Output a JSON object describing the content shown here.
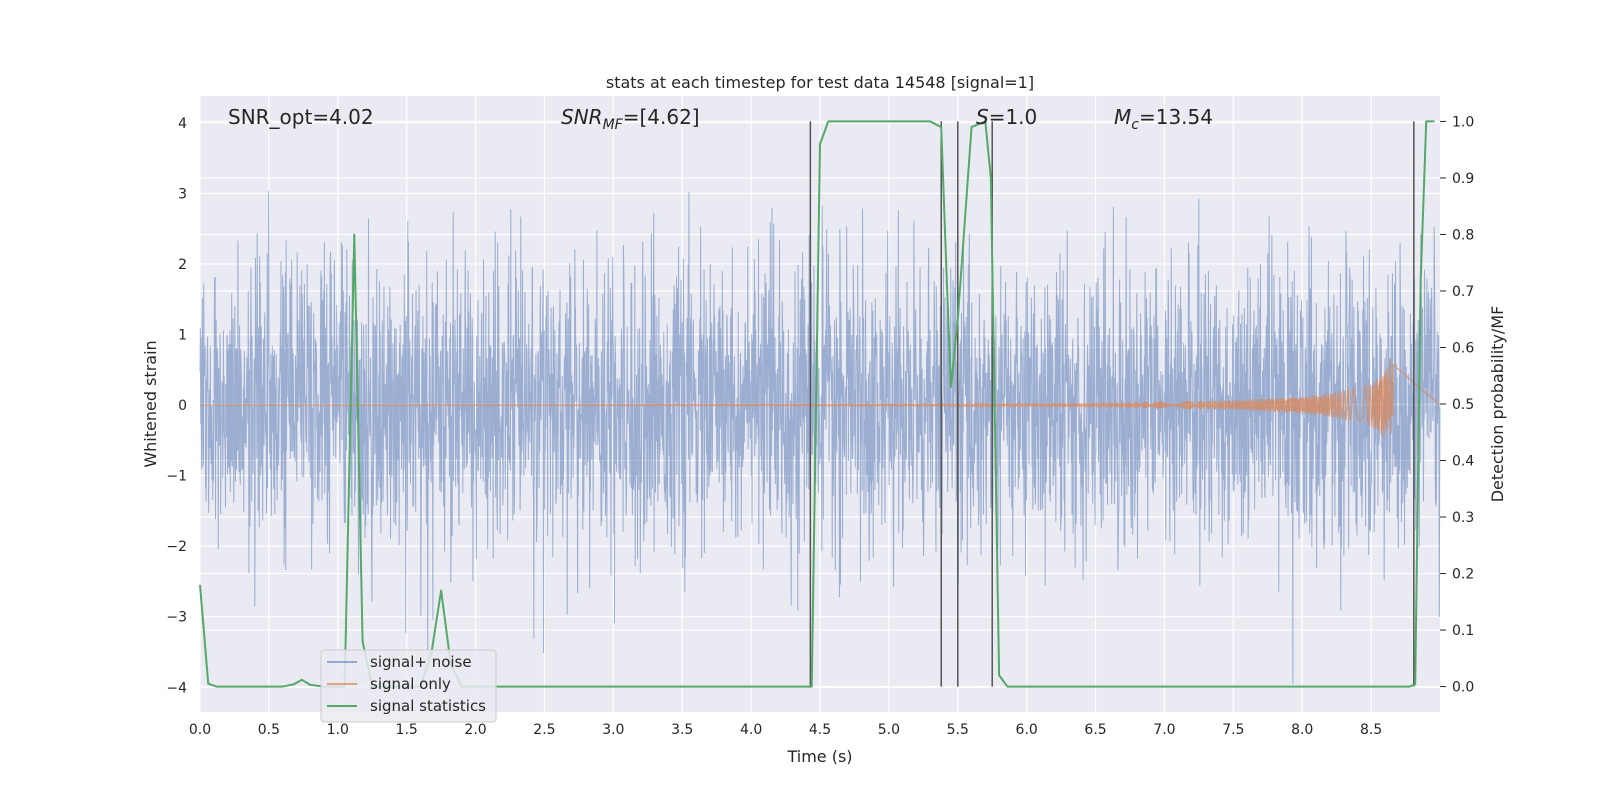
{
  "chart_data": {
    "type": "line",
    "title": "stats at each timestep for test data 14548 [signal=1]",
    "xlabel": "Time (s)",
    "ylabel": "Whitened strain",
    "ylabel_right": "Detection probability/MF",
    "xlim": [
      0,
      9
    ],
    "ylim": [
      -4.35,
      4.38
    ],
    "ylim_right": [
      -0.045,
      1.045
    ],
    "x_ticks": [
      0.0,
      0.5,
      1.0,
      1.5,
      2.0,
      2.5,
      3.0,
      3.5,
      4.0,
      4.5,
      5.0,
      5.5,
      6.0,
      6.5,
      7.0,
      7.5,
      8.0,
      8.5
    ],
    "x_tick_labels": [
      "0.0",
      "0.5",
      "1.0",
      "1.5",
      "2.0",
      "2.5",
      "3.0",
      "3.5",
      "4.0",
      "4.5",
      "5.0",
      "5.5",
      "6.0",
      "6.5",
      "7.0",
      "7.5",
      "8.0",
      "8.5"
    ],
    "y_ticks": [
      4,
      3,
      2,
      1,
      0,
      -1,
      -2,
      -3,
      -4
    ],
    "y_tick_labels": [
      "4",
      "3",
      "2",
      "1",
      "0",
      "−1",
      "−2",
      "−3",
      "−4"
    ],
    "y_right_ticks": [
      1.0,
      0.9,
      0.8,
      0.7,
      0.6,
      0.5,
      0.4,
      0.3,
      0.2,
      0.1,
      0.0
    ],
    "y_right_tick_labels": [
      "1.0",
      "0.9",
      "0.8",
      "0.7",
      "0.6",
      "0.5",
      "0.4",
      "0.3",
      "0.2",
      "0.1",
      "0.0"
    ],
    "grid": true,
    "legend_position": "lower-left",
    "annotations": {
      "snr_opt": "SNR_opt=4.02",
      "snr_mf_sym": "SNR",
      "snr_mf_sub": "MF",
      "snr_mf_val": "=[4.62]",
      "s_sym": "S",
      "s_val": "=1.0",
      "mc_sym": "M",
      "mc_sub": "c",
      "mc_val": "=13.54"
    },
    "series": [
      {
        "name": "signal+ noise",
        "color": "#4c72b0",
        "description": "whitened strain samples, roughly Gaussian noise with amplitude up to about ±4 across 0–9 s"
      },
      {
        "name": "signal only",
        "color": "#dd8452",
        "chirp_end_time": 8.66,
        "envelope": [
          [
            5.5,
            0.01
          ],
          [
            6.0,
            0.02
          ],
          [
            6.5,
            0.03
          ],
          [
            7.0,
            0.05
          ],
          [
            7.5,
            0.07
          ],
          [
            8.0,
            0.12
          ],
          [
            8.2,
            0.17
          ],
          [
            8.4,
            0.25
          ],
          [
            8.5,
            0.31
          ],
          [
            8.55,
            0.38
          ],
          [
            8.6,
            0.48
          ],
          [
            8.63,
            0.58
          ],
          [
            8.66,
            0.74
          ]
        ]
      },
      {
        "name": "signal statistics",
        "color": "#55a868",
        "x": [
          0.0,
          0.06,
          0.12,
          0.2,
          0.3,
          0.6,
          0.68,
          0.74,
          0.8,
          0.9,
          1.0,
          1.05,
          1.12,
          1.18,
          1.25,
          1.3,
          1.4,
          1.5,
          1.6,
          1.68,
          1.75,
          1.82,
          1.9,
          2.0,
          4.0,
          4.44,
          4.5,
          4.56,
          4.6,
          4.7,
          5.0,
          5.3,
          5.38,
          5.42,
          5.45,
          5.5,
          5.6,
          5.7,
          5.74,
          5.8,
          5.86,
          6.0,
          8.78,
          8.82,
          8.86,
          8.9,
          8.96
        ],
        "values": [
          0.18,
          0.005,
          0.0,
          0.0,
          0.0,
          0.0,
          0.004,
          0.012,
          0.003,
          0.0,
          0.0,
          0.0,
          0.8,
          0.08,
          0.0,
          0.0,
          0.0,
          0.0,
          0.0,
          0.06,
          0.17,
          0.04,
          0.0,
          0.0,
          0.0,
          0.0,
          0.96,
          1.0,
          1.0,
          1.0,
          1.0,
          1.0,
          0.99,
          0.72,
          0.53,
          0.65,
          0.99,
          1.0,
          0.9,
          0.02,
          0.0,
          0.0,
          0.0,
          0.004,
          0.72,
          1.0,
          1.0
        ]
      }
    ],
    "vertical_markers": [
      4.43,
      5.38,
      5.5,
      5.75,
      8.81
    ]
  }
}
